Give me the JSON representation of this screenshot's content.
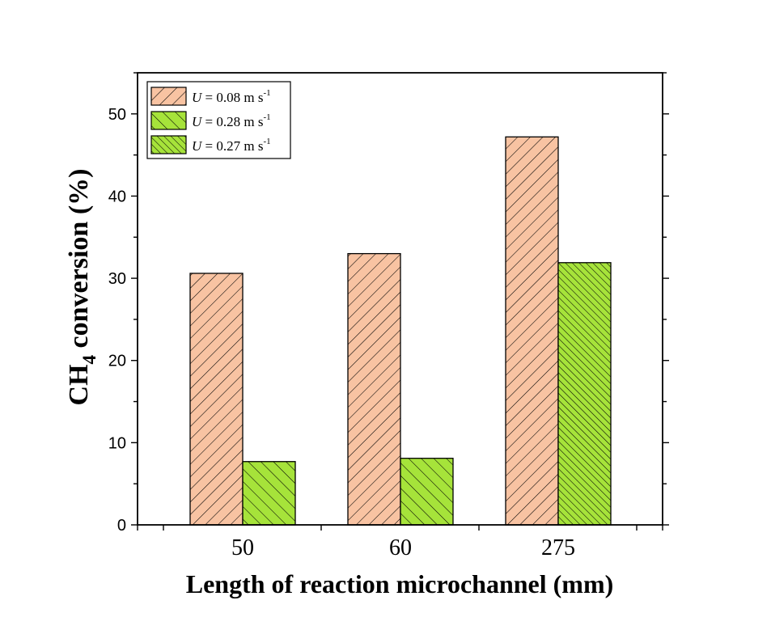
{
  "chart_data": {
    "type": "bar",
    "categories": [
      "50",
      "60",
      "275"
    ],
    "series": [
      {
        "name": "U = 0.08 m s-1",
        "values": [
          30.6,
          33.0,
          47.2
        ]
      },
      {
        "name": "U = 0.28 m s-1",
        "values": [
          7.7,
          8.1,
          null
        ]
      },
      {
        "name": "U = 0.27 m s-1",
        "values": [
          null,
          null,
          31.9
        ]
      }
    ],
    "legend_items": [
      {
        "symbol": "U",
        "text": " = 0.08 m s",
        "sup": "-1"
      },
      {
        "symbol": "U",
        "text": " = 0.28 m s",
        "sup": "-1"
      },
      {
        "symbol": "U",
        "text": " = 0.27 m s",
        "sup": "-1"
      }
    ],
    "xlabel": "Length of reaction microchannel (mm)",
    "ylabel": {
      "prefix": "CH",
      "sub": "4",
      "suffix": " conversion (%)"
    },
    "ylim": [
      0,
      55
    ],
    "yticks": [
      "0",
      "10",
      "20",
      "30",
      "40",
      "50"
    ],
    "grid": false,
    "legend_position": "top-left",
    "colors": {
      "series1_fill": "#f8c3a2",
      "series2_fill": "#a6e33a",
      "series3_fill": "#a6e33a",
      "hatch": "#000000"
    }
  }
}
